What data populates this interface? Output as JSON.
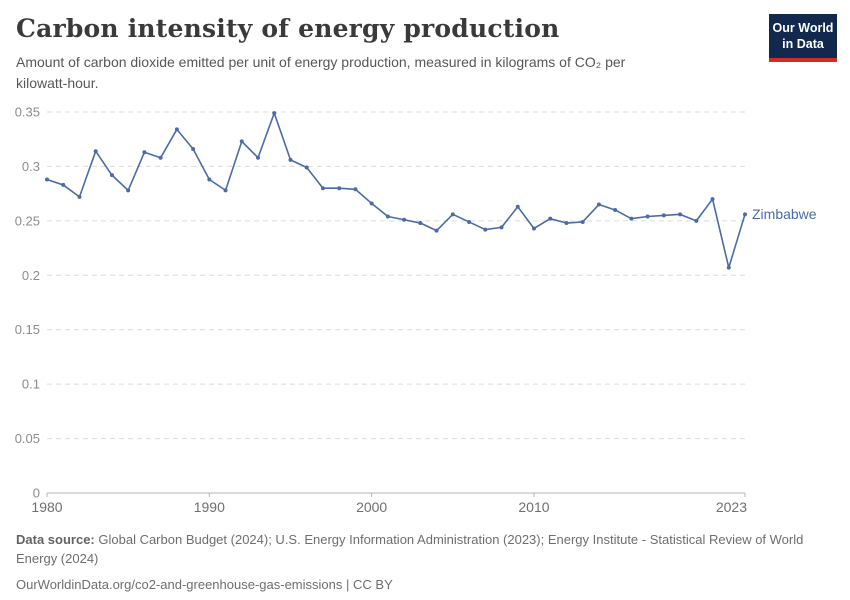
{
  "header": {
    "title": "Carbon intensity of energy production",
    "subtitle": "Amount of carbon dioxide emitted per unit of energy production, measured in kilograms of CO₂ per kilowatt-hour."
  },
  "logo": {
    "line1": "Our World",
    "line2": "in Data",
    "background_color": "#12294d",
    "stripe_color": "#cf2e28"
  },
  "footer": {
    "data_source_label": "Data source:",
    "data_source_text": "Global Carbon Budget (2024); U.S. Energy Information Administration (2023); Energy Institute - Statistical Review of World Energy (2024)",
    "url": "OurWorldinData.org/co2-and-greenhouse-gas-emissions",
    "separator": "|",
    "license": "CC BY"
  },
  "chart_data": {
    "type": "line",
    "title": "Carbon intensity of energy production",
    "ylabel": "kilograms of CO₂ per kilowatt-hour",
    "x": [
      1980,
      1981,
      1982,
      1983,
      1984,
      1985,
      1986,
      1987,
      1988,
      1989,
      1990,
      1991,
      1992,
      1993,
      1994,
      1995,
      1996,
      1997,
      1998,
      1999,
      2000,
      2001,
      2002,
      2003,
      2004,
      2005,
      2006,
      2007,
      2008,
      2009,
      2010,
      2011,
      2012,
      2013,
      2014,
      2015,
      2016,
      2017,
      2018,
      2019,
      2020,
      2021,
      2022,
      2023
    ],
    "series": [
      {
        "name": "Zimbabwe",
        "color": "#4C6BA5",
        "values": [
          0.288,
          0.283,
          0.272,
          0.314,
          0.292,
          0.278,
          0.313,
          0.308,
          0.334,
          0.316,
          0.288,
          0.278,
          0.323,
          0.308,
          0.349,
          0.306,
          0.299,
          0.28,
          0.28,
          0.279,
          0.266,
          0.254,
          0.251,
          0.248,
          0.241,
          0.256,
          0.249,
          0.242,
          0.244,
          0.263,
          0.243,
          0.252,
          0.248,
          0.249,
          0.265,
          0.26,
          0.252,
          0.254,
          0.255,
          0.256,
          0.25,
          0.27,
          0.207,
          0.256
        ]
      }
    ],
    "ylim": [
      0,
      0.35
    ],
    "yticks": [
      0,
      0.05,
      0.1,
      0.15,
      0.2,
      0.25,
      0.3,
      0.35
    ],
    "ytick_labels": [
      "0",
      "0.05",
      "0.1",
      "0.15",
      "0.2",
      "0.25",
      "0.3",
      "0.35"
    ],
    "xticks": [
      1980,
      1990,
      2000,
      2010,
      2023
    ],
    "grid": "dashed-horizontal",
    "legend_position": "end-of-line-label"
  }
}
